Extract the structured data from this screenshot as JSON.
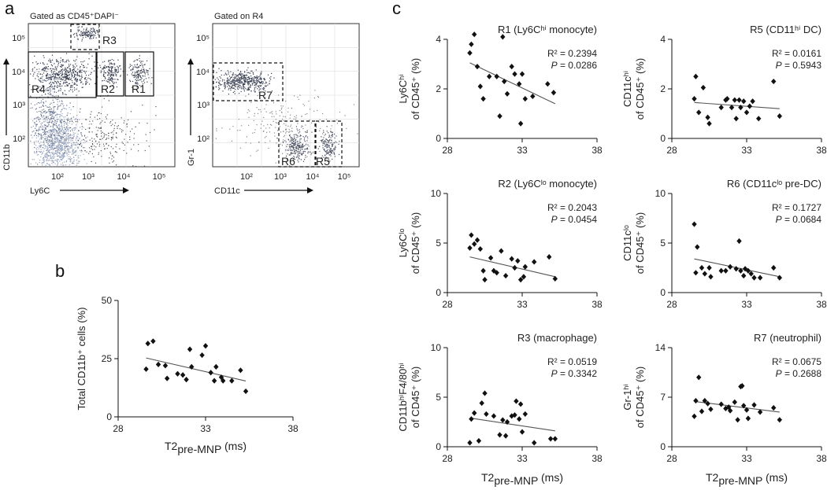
{
  "panel_labels": {
    "a": "a",
    "b": "b",
    "c": "c"
  },
  "flow": [
    {
      "id": "flow1",
      "title": "Gated as CD45⁺DAPI⁻",
      "xlabel": "Ly6C",
      "ylabel": "CD11b",
      "xticks": [
        "10²",
        "10³",
        "10⁴",
        "10⁵"
      ],
      "yticks": [
        "10²",
        "10³",
        "10⁴",
        "10⁵"
      ],
      "gates": [
        {
          "name": "R3",
          "style": "dashed"
        },
        {
          "name": "R4",
          "style": "solid"
        },
        {
          "name": "R2",
          "style": "solid"
        },
        {
          "name": "R1",
          "style": "solid"
        }
      ]
    },
    {
      "id": "flow2",
      "title": "Gated on R4",
      "xlabel": "CD11c",
      "ylabel": "Gr-1",
      "xticks": [
        "10²",
        "10³",
        "10⁴",
        "10⁵"
      ],
      "yticks": [
        "10²",
        "10³",
        "10⁴",
        "10⁵"
      ],
      "gates": [
        {
          "name": "R7",
          "style": "dashed"
        },
        {
          "name": "R6",
          "style": "dashed"
        },
        {
          "name": "R5",
          "style": "dashed"
        }
      ]
    }
  ],
  "chart_data": [
    {
      "id": "b",
      "type": "scatter",
      "title": "",
      "xlabel_main": "T2",
      "xlabel_sub": "pre-MNP",
      "xlabel_unit": " (ms)",
      "ylabel_lines": [
        "Total CD11b⁺ cells (%)"
      ],
      "xlim": [
        28,
        38
      ],
      "ylim": [
        0,
        50
      ],
      "xticks": [
        28,
        33,
        38
      ],
      "yticks": [
        0,
        25,
        50
      ],
      "points": [
        [
          29.6,
          20.5
        ],
        [
          29.7,
          31.5
        ],
        [
          30.0,
          32.5
        ],
        [
          30.3,
          22.5
        ],
        [
          30.7,
          22
        ],
        [
          30.8,
          16.5
        ],
        [
          31.4,
          18.5
        ],
        [
          31.7,
          18
        ],
        [
          31.9,
          16
        ],
        [
          32.1,
          29
        ],
        [
          32.2,
          21.5
        ],
        [
          32.8,
          26.5
        ],
        [
          33.0,
          30.5
        ],
        [
          33.3,
          19
        ],
        [
          33.5,
          15.5
        ],
        [
          33.6,
          21.5
        ],
        [
          33.9,
          17
        ],
        [
          34.0,
          15.5
        ],
        [
          34.5,
          15.5
        ],
        [
          35.0,
          20
        ],
        [
          35.3,
          11
        ]
      ],
      "fit": [
        [
          29.6,
          25.3
        ],
        [
          35.3,
          15.4
        ]
      ]
    },
    {
      "id": "c1",
      "type": "scatter",
      "title": "R1 (Ly6Cʰⁱ monocyte)",
      "r2": "R² = 0.2394",
      "p_label": "P",
      "p_value": " = 0.0286",
      "ylabel_lines": [
        "Ly6Cʰⁱ",
        "of CD45⁺ (%)"
      ],
      "xlim": [
        28,
        38
      ],
      "ylim": [
        0,
        4
      ],
      "xticks": [
        28,
        33,
        38
      ],
      "yticks": [
        0,
        2,
        4
      ],
      "points": [
        [
          29.5,
          3.45
        ],
        [
          29.6,
          3.8
        ],
        [
          29.8,
          4.2
        ],
        [
          30.0,
          2.9
        ],
        [
          30.2,
          2.1
        ],
        [
          30.4,
          1.6
        ],
        [
          30.8,
          2.5
        ],
        [
          31.3,
          2.5
        ],
        [
          31.5,
          0.9
        ],
        [
          31.7,
          4.1
        ],
        [
          31.8,
          2.3
        ],
        [
          32.0,
          1.8
        ],
        [
          32.3,
          2.9
        ],
        [
          32.5,
          2.6
        ],
        [
          32.8,
          2.2
        ],
        [
          32.9,
          0.6
        ],
        [
          33.0,
          2.6
        ],
        [
          33.2,
          1.6
        ],
        [
          33.7,
          1.7
        ],
        [
          34.7,
          2.2
        ],
        [
          35.1,
          1.85
        ]
      ],
      "fit": [
        [
          29.5,
          3.05
        ],
        [
          35.2,
          1.4
        ]
      ]
    },
    {
      "id": "c2",
      "type": "scatter",
      "title": "R5 (CD11ʰⁱ DC)",
      "r2": "R² = 0.0161",
      "p_label": "P",
      "p_value": " = 0.5943",
      "ylabel_lines": [
        "CD11cʰⁱ",
        "of CD45⁺ (%)"
      ],
      "xlim": [
        28,
        38
      ],
      "ylim": [
        0,
        4
      ],
      "xticks": [
        28,
        33,
        38
      ],
      "yticks": [
        0,
        2,
        4
      ],
      "points": [
        [
          29.5,
          1.6
        ],
        [
          29.6,
          2.5
        ],
        [
          29.8,
          1.05
        ],
        [
          30.1,
          2.05
        ],
        [
          30.4,
          0.85
        ],
        [
          30.5,
          0.6
        ],
        [
          31.3,
          1.25
        ],
        [
          31.6,
          1.55
        ],
        [
          31.7,
          1.6
        ],
        [
          32.0,
          1.25
        ],
        [
          32.2,
          1.55
        ],
        [
          32.3,
          0.8
        ],
        [
          32.5,
          1.55
        ],
        [
          32.6,
          1.25
        ],
        [
          32.8,
          1.5
        ],
        [
          33.0,
          1.05
        ],
        [
          33.2,
          1.3
        ],
        [
          33.4,
          1.5
        ],
        [
          33.8,
          0.8
        ],
        [
          34.8,
          2.3
        ],
        [
          35.2,
          0.9
        ]
      ],
      "fit": [
        [
          29.5,
          1.45
        ],
        [
          35.2,
          1.2
        ]
      ]
    },
    {
      "id": "c3",
      "type": "scatter",
      "title": "R2 (Ly6Cˡᵒ monocyte)",
      "r2": "R² = 0.2043",
      "p_label": "P",
      "p_value": " = 0.0454",
      "ylabel_lines": [
        "Ly6Cˡᵒ",
        "of CD45⁺ (%)"
      ],
      "xlim": [
        28,
        38
      ],
      "ylim": [
        0,
        10
      ],
      "xticks": [
        28,
        33,
        38
      ],
      "yticks": [
        0,
        5,
        10
      ],
      "points": [
        [
          29.5,
          4.5
        ],
        [
          29.6,
          5.8
        ],
        [
          29.8,
          4.9
        ],
        [
          30.0,
          5.3
        ],
        [
          30.2,
          4.4
        ],
        [
          30.4,
          2.2
        ],
        [
          30.5,
          1.3
        ],
        [
          30.9,
          3.5
        ],
        [
          31.1,
          2.2
        ],
        [
          31.3,
          2.0
        ],
        [
          31.6,
          4.2
        ],
        [
          31.9,
          1.7
        ],
        [
          32.3,
          3.4
        ],
        [
          32.5,
          2.5
        ],
        [
          32.7,
          3.2
        ],
        [
          32.9,
          1.3
        ],
        [
          33.1,
          1.6
        ],
        [
          33.2,
          2.6
        ],
        [
          33.8,
          3.1
        ],
        [
          34.8,
          3.6
        ],
        [
          35.2,
          1.4
        ]
      ],
      "fit": [
        [
          29.5,
          3.6
        ],
        [
          35.2,
          1.6
        ]
      ]
    },
    {
      "id": "c4",
      "type": "scatter",
      "title": "R6 (CD11cˡᵒ pre-DC)",
      "r2": "R² = 0.1727",
      "p_label": "P",
      "p_value": " = 0.0684",
      "ylabel_lines": [
        "CD11cˡᵒ",
        "of CD45⁺ (%)"
      ],
      "xlim": [
        28,
        38
      ],
      "ylim": [
        0,
        10
      ],
      "xticks": [
        28,
        33,
        38
      ],
      "yticks": [
        0,
        5,
        10
      ],
      "points": [
        [
          29.5,
          6.9
        ],
        [
          29.6,
          2.0
        ],
        [
          29.7,
          4.6
        ],
        [
          30.0,
          2.5
        ],
        [
          30.2,
          1.9
        ],
        [
          30.5,
          2.5
        ],
        [
          30.6,
          1.6
        ],
        [
          31.3,
          2.2
        ],
        [
          31.6,
          2.2
        ],
        [
          31.9,
          2.6
        ],
        [
          32.3,
          2.4
        ],
        [
          32.5,
          5.2
        ],
        [
          32.6,
          2.2
        ],
        [
          32.8,
          1.7
        ],
        [
          32.9,
          2.4
        ],
        [
          33.1,
          2.2
        ],
        [
          33.3,
          1.9
        ],
        [
          33.5,
          1.5
        ],
        [
          33.9,
          1.5
        ],
        [
          34.8,
          2.5
        ],
        [
          35.2,
          1.5
        ]
      ],
      "fit": [
        [
          29.5,
          3.4
        ],
        [
          35.2,
          1.6
        ]
      ]
    },
    {
      "id": "c5",
      "type": "scatter",
      "title": "R3 (macrophage)",
      "r2": "R² = 0.0519",
      "p_label": "P",
      "p_value": " = 0.3342",
      "ylabel_lines": [
        "CD11bʰⁱF4/80ʰⁱ",
        "of CD45⁺ (%)"
      ],
      "xlim": [
        28,
        38
      ],
      "ylim": [
        0,
        10
      ],
      "xticks": [
        28,
        33,
        38
      ],
      "yticks": [
        0,
        5,
        10
      ],
      "points": [
        [
          29.5,
          0.4
        ],
        [
          29.6,
          2.8
        ],
        [
          29.8,
          3.4
        ],
        [
          30.1,
          0.6
        ],
        [
          30.3,
          4.4
        ],
        [
          30.5,
          5.4
        ],
        [
          30.6,
          3.3
        ],
        [
          31.1,
          3.1
        ],
        [
          31.5,
          1.2
        ],
        [
          31.7,
          2.7
        ],
        [
          31.9,
          1.1
        ],
        [
          32.0,
          2.5
        ],
        [
          32.3,
          3.1
        ],
        [
          32.5,
          3.2
        ],
        [
          32.6,
          4.6
        ],
        [
          32.8,
          2.8
        ],
        [
          32.9,
          4.3
        ],
        [
          33.0,
          1.5
        ],
        [
          33.2,
          3.3
        ],
        [
          33.8,
          0.4
        ],
        [
          34.9,
          0.8
        ],
        [
          35.2,
          0.8
        ]
      ],
      "fit": [
        [
          29.5,
          2.9
        ],
        [
          35.2,
          1.6
        ]
      ]
    },
    {
      "id": "c6",
      "type": "scatter",
      "title": "R7 (neutrophil)",
      "r2": "R² = 0.0675",
      "p_label": "P",
      "p_value": " = 0.2688",
      "ylabel_lines": [
        "Gr-1ʰⁱ",
        "of CD45⁺ (%)"
      ],
      "xlim": [
        28,
        38
      ],
      "ylim": [
        0,
        14
      ],
      "xticks": [
        28,
        33,
        38
      ],
      "yticks": [
        0,
        7,
        14
      ],
      "points": [
        [
          29.5,
          4.3
        ],
        [
          29.6,
          6.5
        ],
        [
          29.8,
          9.8
        ],
        [
          30.0,
          5.0
        ],
        [
          30.2,
          6.5
        ],
        [
          30.4,
          6.1
        ],
        [
          30.6,
          5.3
        ],
        [
          31.3,
          6.0
        ],
        [
          31.6,
          5.4
        ],
        [
          31.8,
          5.6
        ],
        [
          31.9,
          5.1
        ],
        [
          32.2,
          6.3
        ],
        [
          32.4,
          3.8
        ],
        [
          32.6,
          8.5
        ],
        [
          32.7,
          8.6
        ],
        [
          32.8,
          5.8
        ],
        [
          33.0,
          5.2
        ],
        [
          33.1,
          4.0
        ],
        [
          33.5,
          5.9
        ],
        [
          33.9,
          4.9
        ],
        [
          34.8,
          5.5
        ],
        [
          35.2,
          3.8
        ]
      ],
      "fit": [
        [
          29.5,
          6.4
        ],
        [
          35.2,
          4.9
        ]
      ]
    }
  ],
  "shared_xlabel": {
    "main": "T2",
    "sub": "pre-MNP",
    "unit": " (ms)"
  }
}
